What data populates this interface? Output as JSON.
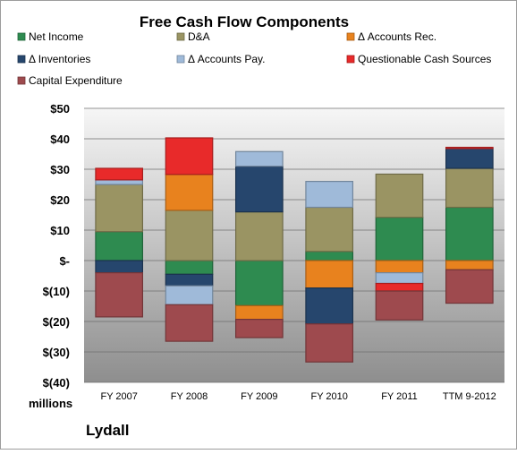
{
  "chart_data": {
    "type": "bar",
    "stacked": true,
    "title": "Free Cash Flow Components",
    "ylabel": "millions",
    "company": "Lydall",
    "categories": [
      "FY 2007",
      "FY 2008",
      "FY 2009",
      "FY 2010",
      "FY 2011",
      "TTM 9-2012"
    ],
    "ylim": [
      -40,
      50
    ],
    "yticks": [
      50,
      40,
      30,
      20,
      10,
      0,
      -10,
      -20,
      -30,
      -40
    ],
    "ytick_labels": [
      "$50",
      "$40",
      "$30",
      "$20",
      "$10",
      "$-",
      "$(10)",
      "$(20)",
      "$(30)",
      "$(40)"
    ],
    "grid": true,
    "legend_position": "top",
    "series": [
      {
        "name": "Net Income",
        "color": "#2e8b50",
        "values": [
          9.5,
          -4.5,
          -14.8,
          3,
          14.2,
          17.5
        ]
      },
      {
        "name": "D&A",
        "color": "#9a9463",
        "values": [
          15.5,
          16.5,
          16,
          14.5,
          14.2,
          12.8
        ]
      },
      {
        "name": "Δ Accounts Rec.",
        "color": "#e8821e",
        "values": [
          0,
          11.8,
          -4.5,
          -9,
          -4,
          -3
        ]
      },
      {
        "name": "Δ Inventories",
        "color": "#26466d",
        "values": [
          -4,
          -3.8,
          15,
          -11.8,
          0,
          6.5
        ]
      },
      {
        "name": "Δ Accounts Pay.",
        "color": "#9fbad9",
        "values": [
          1.5,
          -6.2,
          4.8,
          8.5,
          -3.5,
          0
        ]
      },
      {
        "name": "Questionable Cash Sources",
        "color": "#e82a2a",
        "values": [
          3.8,
          12,
          0,
          0,
          -2.5,
          0.4
        ]
      },
      {
        "name": "Capital Expenditure",
        "color": "#9e4a4e",
        "values": [
          -14.5,
          -12,
          -6,
          -12.5,
          -9.5,
          -11
        ]
      }
    ]
  }
}
